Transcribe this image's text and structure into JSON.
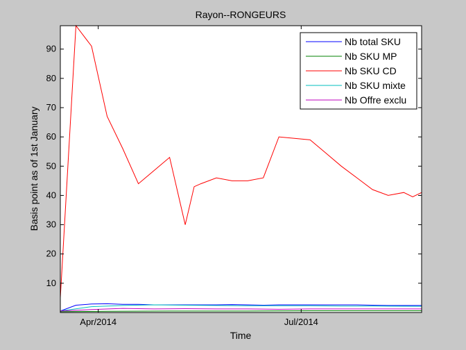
{
  "chart_data": {
    "type": "line",
    "title": "Rayon--RONGEURS",
    "xlabel": "Time",
    "ylabel": "Basis point as of 1st January",
    "x_type": "date",
    "xlim": [
      "2014-03-15",
      "2014-08-24"
    ],
    "ylim": [
      0,
      98
    ],
    "yticks": [
      10,
      20,
      30,
      40,
      50,
      60,
      70,
      80,
      90
    ],
    "xticks": [
      {
        "value": "2014-04-01",
        "label": "Apr/2014"
      },
      {
        "value": "2014-07-01",
        "label": "Jul/2014"
      }
    ],
    "grid": false,
    "legend_position": "top-right",
    "series": [
      {
        "name": "Nb total SKU",
        "color": "#0000ff",
        "x": [
          "2014-03-15",
          "2014-03-22",
          "2014-03-29",
          "2014-04-05",
          "2014-04-12",
          "2014-04-19",
          "2014-04-26",
          "2014-05-03",
          "2014-05-10",
          "2014-05-17",
          "2014-05-24",
          "2014-05-31",
          "2014-06-07",
          "2014-06-14",
          "2014-06-21",
          "2014-06-28",
          "2014-07-05",
          "2014-07-12",
          "2014-07-19",
          "2014-07-26",
          "2014-08-02",
          "2014-08-09",
          "2014-08-16",
          "2014-08-24"
        ],
        "y": [
          0.5,
          2.5,
          2.9,
          3.0,
          2.8,
          2.8,
          2.6,
          2.6,
          2.6,
          2.6,
          2.6,
          2.7,
          2.6,
          2.5,
          2.6,
          2.6,
          2.6,
          2.6,
          2.6,
          2.6,
          2.5,
          2.4,
          2.4,
          2.4
        ]
      },
      {
        "name": "Nb SKU MP",
        "color": "#008000",
        "x": [
          "2014-03-15",
          "2014-04-05",
          "2014-05-03",
          "2014-06-07",
          "2014-07-05",
          "2014-08-02",
          "2014-08-24"
        ],
        "y": [
          0.3,
          0.4,
          0.5,
          0.5,
          0.6,
          0.6,
          0.6
        ]
      },
      {
        "name": "Nb SKU CD",
        "color": "#ff0000",
        "x": [
          "2014-03-15",
          "2014-03-22",
          "2014-03-29",
          "2014-04-05",
          "2014-04-12",
          "2014-04-19",
          "2014-04-26",
          "2014-05-03",
          "2014-05-10",
          "2014-05-14",
          "2014-05-17",
          "2014-05-24",
          "2014-05-31",
          "2014-06-07",
          "2014-06-14",
          "2014-06-21",
          "2014-06-28",
          "2014-07-05",
          "2014-07-12",
          "2014-07-19",
          "2014-07-26",
          "2014-08-02",
          "2014-08-09",
          "2014-08-16",
          "2014-08-20",
          "2014-08-24"
        ],
        "y": [
          5,
          98,
          91,
          67,
          56,
          44,
          48.5,
          53,
          30,
          43,
          44,
          46,
          45,
          45,
          46,
          60,
          59.5,
          59,
          54.5,
          50,
          46,
          42,
          40,
          41,
          39.5,
          41
        ]
      },
      {
        "name": "Nb SKU mixte",
        "color": "#00bfbf",
        "x": [
          "2014-03-15",
          "2014-03-29",
          "2014-04-12",
          "2014-04-26",
          "2014-05-10",
          "2014-05-24",
          "2014-06-07",
          "2014-06-21",
          "2014-07-05",
          "2014-07-19",
          "2014-08-02",
          "2014-08-24"
        ],
        "y": [
          0.5,
          2.0,
          2.4,
          2.6,
          2.5,
          2.4,
          2.3,
          2.3,
          2.3,
          2.2,
          2.2,
          2.1
        ]
      },
      {
        "name": "Nb Offre exclu",
        "color": "#bf00bf",
        "x": [
          "2014-03-15",
          "2014-03-29",
          "2014-04-12",
          "2014-04-26",
          "2014-05-10",
          "2014-05-24",
          "2014-06-07",
          "2014-06-21",
          "2014-07-05",
          "2014-07-19",
          "2014-08-02",
          "2014-08-24"
        ],
        "y": [
          0.5,
          1.0,
          1.4,
          1.2,
          1.3,
          1.2,
          1.2,
          1.1,
          1.2,
          1.2,
          1.2,
          1.2
        ]
      }
    ]
  }
}
